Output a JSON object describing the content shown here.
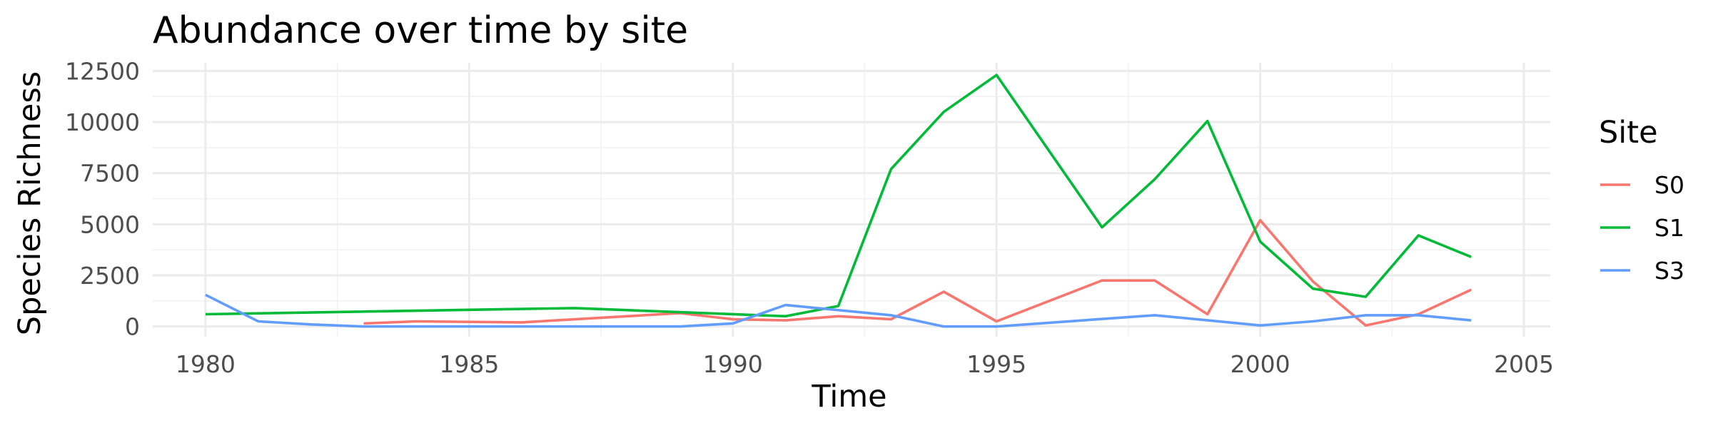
{
  "chart_data": {
    "type": "line",
    "title": "Abundance over time by site",
    "xlabel": "Time",
    "ylabel": "Species Richness",
    "xlim": [
      1979,
      2005.5
    ],
    "ylim": [
      -500,
      12900
    ],
    "x_ticks": [
      1980,
      1985,
      1990,
      1995,
      2000,
      2005
    ],
    "y_ticks": [
      0,
      2500,
      5000,
      7500,
      10000,
      12500
    ],
    "x_tick_labels": [
      "1980",
      "1985",
      "1990",
      "1995",
      "2000",
      "2005"
    ],
    "y_tick_labels": [
      "0",
      "2500",
      "5000",
      "7500",
      "10000",
      "12500"
    ],
    "grid": true,
    "legend": {
      "title": "Site",
      "position": "right"
    },
    "series": [
      {
        "name": "S0",
        "color": "#F8766D",
        "x": [
          1983,
          1984,
          1986,
          1989,
          1990,
          1991,
          1992,
          1993,
          1994,
          1995,
          1997,
          1998,
          1999,
          2000,
          2001,
          2002,
          2003,
          2004
        ],
        "y": [
          150,
          250,
          200,
          650,
          350,
          300,
          500,
          350,
          1700,
          250,
          2250,
          2250,
          600,
          5200,
          2200,
          50,
          600,
          1800
        ]
      },
      {
        "name": "S1",
        "color": "#00BA38",
        "x": [
          1980,
          1987,
          1991,
          1992,
          1993,
          1994,
          1995,
          1997,
          1998,
          1999,
          2000,
          2001,
          2002,
          2003,
          2004
        ],
        "y": [
          600,
          900,
          500,
          1000,
          7700,
          10500,
          12300,
          4850,
          7200,
          10050,
          4150,
          1850,
          1450,
          4450,
          3400
        ]
      },
      {
        "name": "S3",
        "color": "#619CFF",
        "x": [
          1980,
          1981,
          1982,
          1983,
          1989,
          1990,
          1991,
          1993,
          1994,
          1995,
          1998,
          2000,
          2001,
          2002,
          2003,
          2004
        ],
        "y": [
          1550,
          250,
          100,
          0,
          0,
          150,
          1050,
          550,
          0,
          0,
          550,
          50,
          250,
          550,
          550,
          300
        ]
      }
    ]
  }
}
